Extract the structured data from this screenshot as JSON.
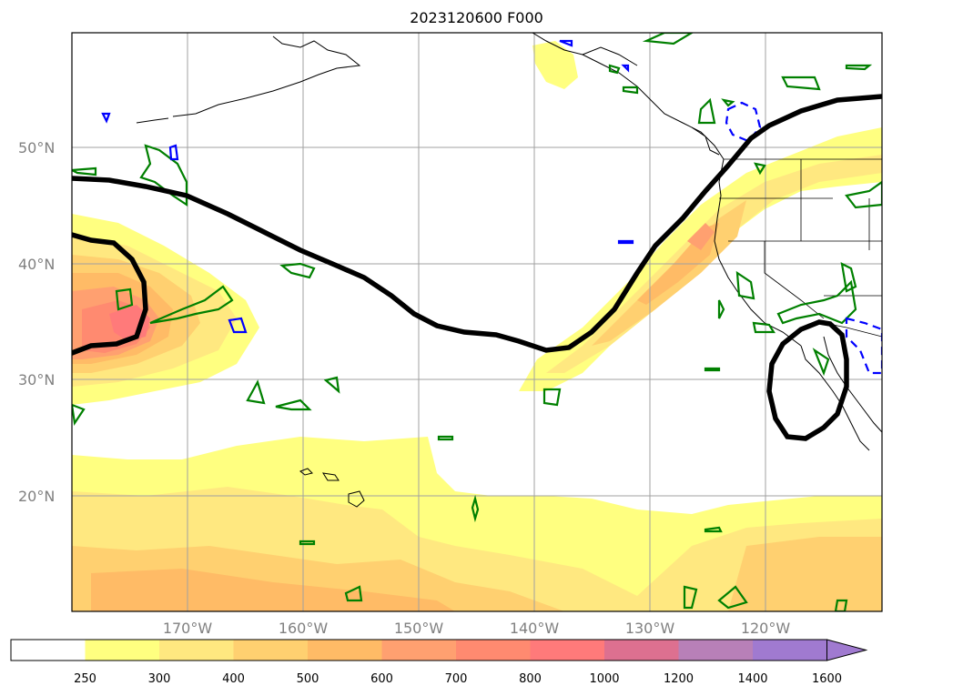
{
  "title": "2023120600 F000",
  "map": {
    "lat_labels": [
      "50°N",
      "40°N",
      "30°N",
      "20°N"
    ],
    "lon_labels": [
      "170°W",
      "160°W",
      "150°W",
      "140°W",
      "130°W",
      "120°W"
    ],
    "fill_colors": [
      "#ffff80",
      "#ffe880",
      "#ffd070",
      "#ffbb66",
      "#ffa070",
      "#ff8a70",
      "#ff7a7a",
      "#dd7090",
      "#b880b8",
      "#a07ad0"
    ],
    "contour_colors": {
      "jet": "#000000",
      "positive": "#008000",
      "negative": "#0000ff"
    }
  },
  "colorbar": {
    "ticks": [
      "250",
      "300",
      "400",
      "500",
      "600",
      "700",
      "800",
      "1000",
      "1200",
      "1400",
      "1600"
    ],
    "colors": [
      "#ffffff",
      "#ffff80",
      "#ffe880",
      "#ffd070",
      "#ffbb66",
      "#ffa070",
      "#ff8a70",
      "#ff7a7a",
      "#dd7090",
      "#b880b8",
      "#a07ad0",
      "#a07ad0"
    ]
  }
}
